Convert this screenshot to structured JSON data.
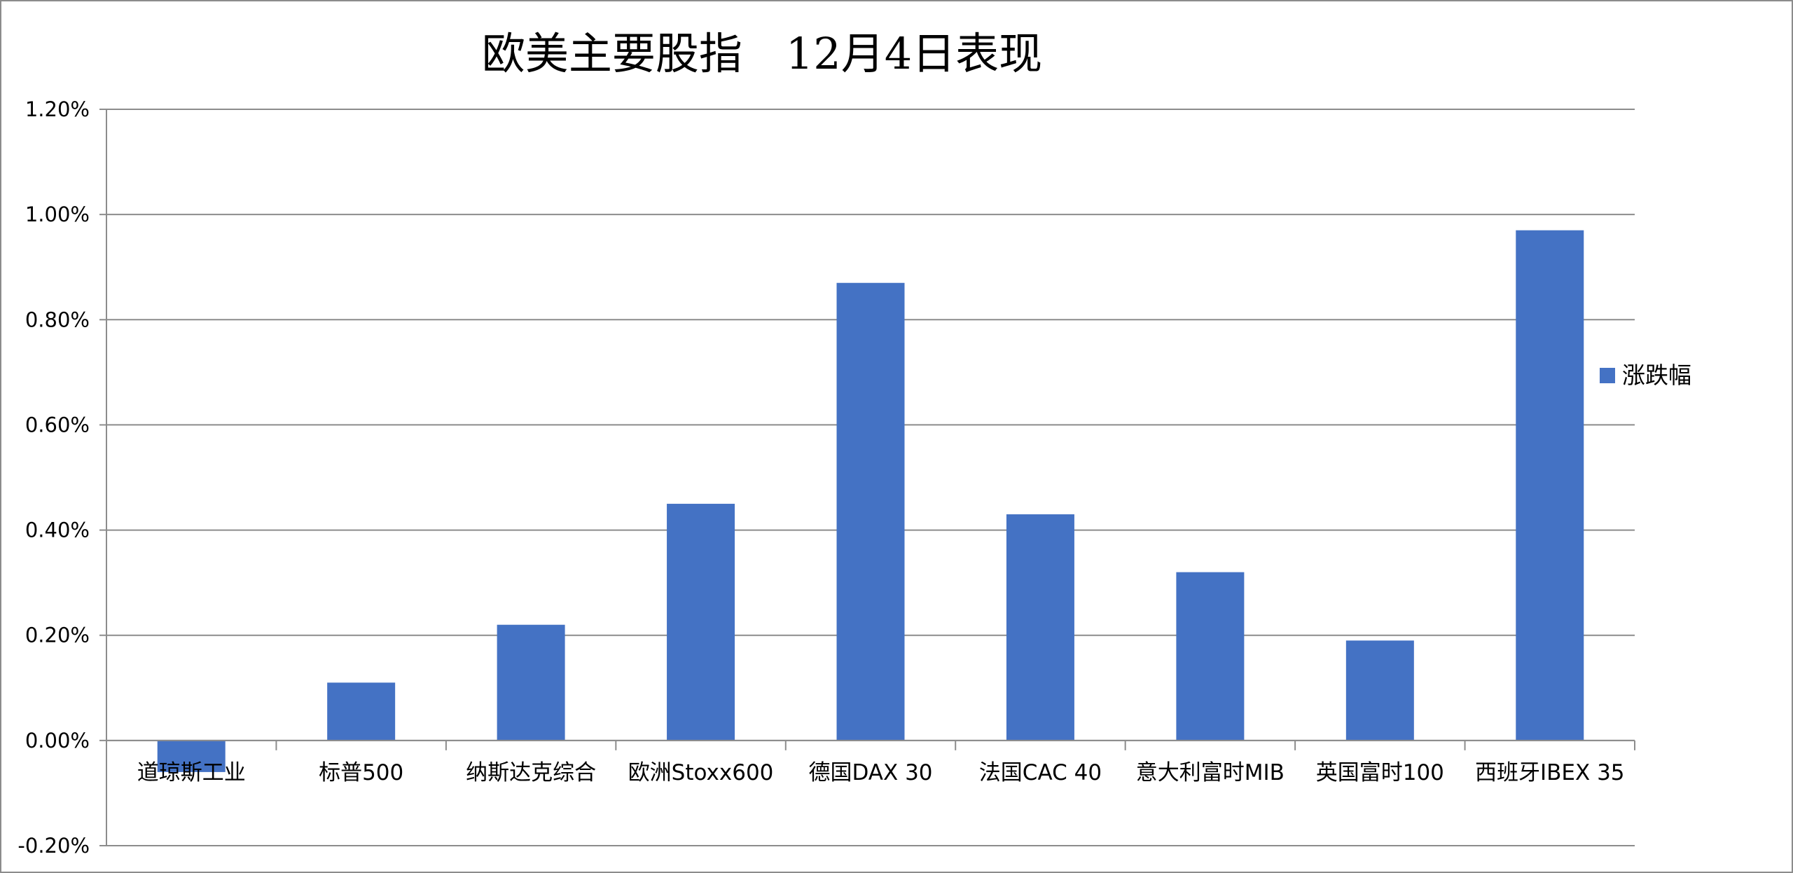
{
  "chart_data": {
    "type": "bar",
    "title": "欧美主要股指　12月4日表现",
    "xlabel": "",
    "ylabel": "",
    "categories": [
      "道琼斯工业",
      "标普500",
      "纳斯达克综合",
      "欧洲Stoxx600",
      "德国DAX 30",
      "法国CAC 40",
      "意大利富时MIB",
      "英国富时100",
      "西班牙IBEX 35"
    ],
    "series": [
      {
        "name": "涨跌幅",
        "values": [
          -0.0006,
          0.0011,
          0.0022,
          0.0045,
          0.0087,
          0.0043,
          0.0032,
          0.0019,
          0.0097
        ],
        "color": "#4472c4"
      }
    ],
    "ylim": [
      -0.002,
      0.012
    ],
    "yticks": [
      -0.002,
      0.0,
      0.002,
      0.004,
      0.006,
      0.008,
      0.01,
      0.012
    ],
    "ytick_labels": [
      "-0.20%",
      "0.00%",
      "0.20%",
      "0.40%",
      "0.60%",
      "0.80%",
      "1.00%",
      "1.20%"
    ],
    "grid": true,
    "legend": "right",
    "colors": {
      "bar": "#4472c4",
      "grid": "#8c8c8c",
      "axis": "#8c8c8c",
      "text": "#000000"
    }
  }
}
